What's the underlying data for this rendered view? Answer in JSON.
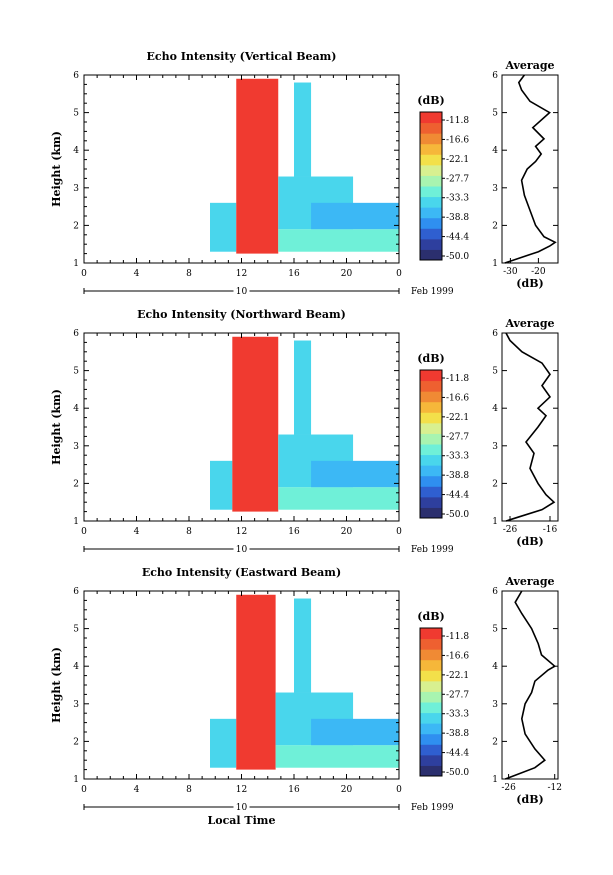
{
  "chart_data": [
    {
      "type": "heatmap",
      "title": "Echo Intensity (Vertical Beam)",
      "ylabel": "Height (km)",
      "xlabel": "",
      "xlim": [
        0,
        24
      ],
      "ylim": [
        1,
        6
      ],
      "xticks": [
        "0",
        "4",
        "8",
        "12",
        "16",
        "20",
        "0"
      ],
      "yticks": [
        "1",
        "2",
        "3",
        "4",
        "5",
        "6"
      ],
      "date_bar": {
        "day": "10",
        "label": "Feb 1999"
      },
      "colorbar": {
        "unit": "(dB)",
        "levels": [
          "-11.8",
          "-16.6",
          "-22.1",
          "-27.7",
          "-33.3",
          "-38.8",
          "-44.4",
          "-50.0"
        ],
        "range": [
          -50.0,
          -11.0
        ]
      },
      "regions": [
        {
          "t0": 9.6,
          "t1": 11.6,
          "h0": 1.3,
          "h1": 2.6,
          "db": -34
        },
        {
          "t0": 11.6,
          "t1": 14.8,
          "h0": 1.25,
          "h1": 5.9,
          "db": -11
        },
        {
          "t0": 14.8,
          "t1": 24.0,
          "h0": 1.3,
          "h1": 1.9,
          "db": -32
        },
        {
          "t0": 14.8,
          "t1": 20.5,
          "h0": 1.9,
          "h1": 3.3,
          "db": -36
        },
        {
          "t0": 16.0,
          "t1": 17.3,
          "h0": 3.3,
          "h1": 5.8,
          "db": -36
        },
        {
          "t0": 17.3,
          "t1": 24.0,
          "h0": 1.9,
          "h1": 2.6,
          "db": -38
        }
      ],
      "profile": {
        "title": "Average",
        "xlabel": "(dB)",
        "xticks": [
          "-30",
          "-20"
        ],
        "xlim": [
          -33,
          -13
        ],
        "points": [
          [
            -32,
            1.0
          ],
          [
            -28,
            1.1
          ],
          [
            -20,
            1.3
          ],
          [
            -16,
            1.45
          ],
          [
            -14,
            1.55
          ],
          [
            -18,
            1.7
          ],
          [
            -21,
            2.0
          ],
          [
            -23,
            2.4
          ],
          [
            -25,
            2.8
          ],
          [
            -26,
            3.2
          ],
          [
            -24,
            3.5
          ],
          [
            -21,
            3.7
          ],
          [
            -19,
            3.9
          ],
          [
            -21,
            4.1
          ],
          [
            -18,
            4.3
          ],
          [
            -22,
            4.6
          ],
          [
            -16,
            5.0
          ],
          [
            -23,
            5.3
          ],
          [
            -26,
            5.6
          ],
          [
            -27,
            5.8
          ],
          [
            -25,
            6.0
          ]
        ]
      }
    },
    {
      "type": "heatmap",
      "title": "Echo Intensity (Northward Beam)",
      "ylabel": "Height (km)",
      "xlabel": "",
      "xlim": [
        0,
        24
      ],
      "ylim": [
        1,
        6
      ],
      "xticks": [
        "0",
        "4",
        "8",
        "12",
        "16",
        "20",
        "0"
      ],
      "yticks": [
        "1",
        "2",
        "3",
        "4",
        "5",
        "6"
      ],
      "date_bar": {
        "day": "10",
        "label": "Feb 1999"
      },
      "colorbar": {
        "unit": "(dB)",
        "levels": [
          "-11.8",
          "-16.6",
          "-22.1",
          "-27.7",
          "-33.3",
          "-38.8",
          "-44.4",
          "-50.0"
        ],
        "range": [
          -50.0,
          -11.0
        ]
      },
      "regions": [
        {
          "t0": 9.6,
          "t1": 11.3,
          "h0": 1.3,
          "h1": 2.6,
          "db": -34
        },
        {
          "t0": 11.3,
          "t1": 14.8,
          "h0": 1.25,
          "h1": 5.9,
          "db": -11
        },
        {
          "t0": 14.8,
          "t1": 24.0,
          "h0": 1.3,
          "h1": 1.9,
          "db": -32
        },
        {
          "t0": 14.8,
          "t1": 20.5,
          "h0": 1.9,
          "h1": 3.3,
          "db": -36
        },
        {
          "t0": 16.0,
          "t1": 17.3,
          "h0": 3.3,
          "h1": 5.8,
          "db": -36
        },
        {
          "t0": 17.3,
          "t1": 24.0,
          "h0": 1.9,
          "h1": 2.6,
          "db": -38
        }
      ],
      "profile": {
        "title": "Average",
        "xlabel": "(dB)",
        "xticks": [
          "-26",
          "-16"
        ],
        "xlim": [
          -28,
          -14
        ],
        "points": [
          [
            -27,
            1.0
          ],
          [
            -24,
            1.1
          ],
          [
            -18,
            1.3
          ],
          [
            -15,
            1.5
          ],
          [
            -17,
            1.7
          ],
          [
            -19,
            2.0
          ],
          [
            -21,
            2.4
          ],
          [
            -20,
            2.8
          ],
          [
            -22,
            3.1
          ],
          [
            -19,
            3.5
          ],
          [
            -17,
            3.8
          ],
          [
            -19,
            4.0
          ],
          [
            -16,
            4.3
          ],
          [
            -18,
            4.6
          ],
          [
            -16,
            4.9
          ],
          [
            -18,
            5.2
          ],
          [
            -23,
            5.5
          ],
          [
            -26,
            5.8
          ],
          [
            -27,
            6.0
          ]
        ]
      }
    },
    {
      "type": "heatmap",
      "title": "Echo Intensity (Eastward Beam)",
      "ylabel": "Height (km)",
      "xlabel": "Local Time",
      "xlim": [
        0,
        24
      ],
      "ylim": [
        1,
        6
      ],
      "xticks": [
        "0",
        "4",
        "8",
        "12",
        "16",
        "20",
        "0"
      ],
      "yticks": [
        "1",
        "2",
        "3",
        "4",
        "5",
        "6"
      ],
      "date_bar": {
        "day": "10",
        "label": "Feb 1999"
      },
      "colorbar": {
        "unit": "(dB)",
        "levels": [
          "-11.8",
          "-16.6",
          "-22.1",
          "-27.7",
          "-33.3",
          "-38.8",
          "-44.4",
          "-50.0"
        ],
        "range": [
          -50.0,
          -11.0
        ]
      },
      "regions": [
        {
          "t0": 9.6,
          "t1": 11.6,
          "h0": 1.3,
          "h1": 2.6,
          "db": -34
        },
        {
          "t0": 11.6,
          "t1": 14.6,
          "h0": 1.25,
          "h1": 5.9,
          "db": -11
        },
        {
          "t0": 14.6,
          "t1": 24.0,
          "h0": 1.3,
          "h1": 1.9,
          "db": -32
        },
        {
          "t0": 14.6,
          "t1": 20.5,
          "h0": 1.9,
          "h1": 3.3,
          "db": -36
        },
        {
          "t0": 16.0,
          "t1": 17.3,
          "h0": 3.3,
          "h1": 5.8,
          "db": -36
        },
        {
          "t0": 17.3,
          "t1": 24.0,
          "h0": 1.9,
          "h1": 2.6,
          "db": -38
        }
      ],
      "profile": {
        "title": "Average",
        "xlabel": "(dB)",
        "xticks": [
          "-26",
          "-12"
        ],
        "xlim": [
          -28,
          -11
        ],
        "points": [
          [
            -27,
            1.0
          ],
          [
            -24,
            1.1
          ],
          [
            -18,
            1.3
          ],
          [
            -15,
            1.5
          ],
          [
            -18,
            1.8
          ],
          [
            -21,
            2.2
          ],
          [
            -22,
            2.6
          ],
          [
            -21,
            3.0
          ],
          [
            -19,
            3.3
          ],
          [
            -18,
            3.6
          ],
          [
            -14,
            3.9
          ],
          [
            -12,
            4.0
          ],
          [
            -16,
            4.3
          ],
          [
            -17,
            4.6
          ],
          [
            -19,
            5.0
          ],
          [
            -22,
            5.4
          ],
          [
            -24,
            5.7
          ],
          [
            -22,
            6.0
          ]
        ]
      }
    }
  ]
}
